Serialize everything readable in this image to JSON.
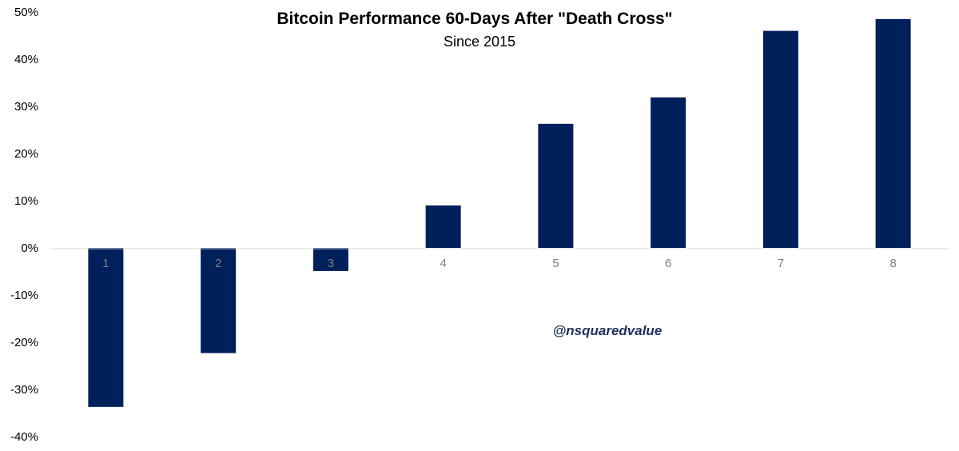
{
  "chart_data": {
    "type": "bar",
    "title": "Bitcoin Performance 60-Days After \"Death Cross\"",
    "subtitle": "Since 2015",
    "xlabel": "",
    "ylabel": "",
    "categories": [
      "1",
      "2",
      "3",
      "4",
      "5",
      "6",
      "7",
      "8"
    ],
    "values": [
      -33.7,
      -22.3,
      -4.9,
      9.0,
      26.3,
      31.9,
      46.0,
      48.5
    ],
    "value_unit": "%",
    "ylim": [
      -40,
      50
    ],
    "yticks": [
      50,
      40,
      30,
      20,
      10,
      0,
      -10,
      -20,
      -30,
      -40
    ],
    "ytick_labels": [
      "50%",
      "40%",
      "30%",
      "20%",
      "10%",
      "0%",
      "-10%",
      "-20%",
      "-30%",
      "-40%"
    ],
    "bar_color": "#00205b",
    "grid": false,
    "annotation": "@nsquaredvalue"
  }
}
